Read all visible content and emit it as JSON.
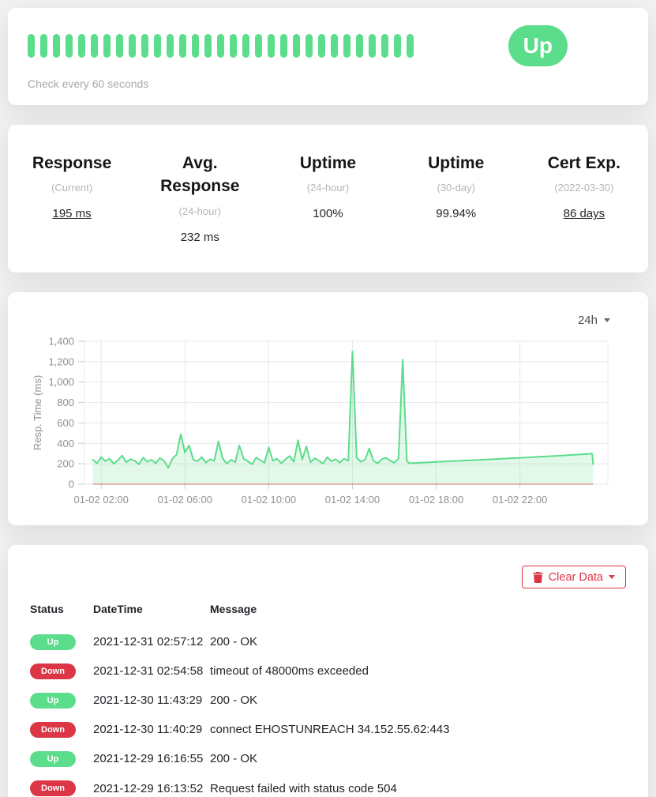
{
  "colors": {
    "up_green": "#5CDD8B",
    "down_red": "#DC3545",
    "area_fill": "rgba(92,221,139,0.18)",
    "grid_line": "#e8e8e8",
    "tick_mark": "#cccccc",
    "axis_text": "#909090",
    "down_baseline": "rgba(220,53,69,0.45)"
  },
  "monitor": {
    "status": "Up",
    "check_interval_text": "Check every 60 seconds",
    "heartbeats": [
      "up",
      "up",
      "up",
      "up",
      "up",
      "up",
      "up",
      "up",
      "up",
      "up",
      "up",
      "up",
      "up",
      "up",
      "up",
      "up",
      "up",
      "up",
      "up",
      "up",
      "up",
      "up",
      "up",
      "up",
      "up",
      "up",
      "up",
      "up",
      "up",
      "up",
      "up"
    ]
  },
  "stats": [
    {
      "title": "Response",
      "subtitle": "(Current)",
      "value": "195 ms",
      "underline": true
    },
    {
      "title": "Avg. Response",
      "subtitle": "(24-hour)",
      "value": "232 ms",
      "underline": false
    },
    {
      "title": "Uptime",
      "subtitle": "(24-hour)",
      "value": "100%",
      "underline": false
    },
    {
      "title": "Uptime",
      "subtitle": "(30-day)",
      "value": "99.94%",
      "underline": false
    },
    {
      "title": "Cert Exp.",
      "subtitle": "(2022-03-30)",
      "value": "86 days",
      "underline": true
    }
  ],
  "chart": {
    "range_label": "24h",
    "chart_data": {
      "type": "area",
      "title": "",
      "xlabel": "",
      "ylabel": "Resp. Time (ms)",
      "ylim": [
        0,
        1400
      ],
      "y_ticks": [
        0,
        200,
        400,
        600,
        800,
        1000,
        1200,
        1400
      ],
      "x_domain_hours": [
        1.2,
        26.2
      ],
      "x_ticks": [
        {
          "h": 2,
          "label": "01-02 02:00"
        },
        {
          "h": 6,
          "label": "01-02 06:00"
        },
        {
          "h": 10,
          "label": "01-02 10:00"
        },
        {
          "h": 14,
          "label": "01-02 14:00"
        },
        {
          "h": 18,
          "label": "01-02 18:00"
        },
        {
          "h": 22,
          "label": "01-02 22:00"
        }
      ],
      "grid": true,
      "legend": false,
      "series": [
        {
          "name": "Resp. Time (ms)",
          "points": [
            [
              1.6,
              240
            ],
            [
              1.8,
              205
            ],
            [
              2,
              265
            ],
            [
              2.2,
              225
            ],
            [
              2.4,
              250
            ],
            [
              2.6,
              200
            ],
            [
              2.8,
              235
            ],
            [
              3,
              280
            ],
            [
              3.2,
              215
            ],
            [
              3.4,
              245
            ],
            [
              3.6,
              230
            ],
            [
              3.8,
              195
            ],
            [
              4,
              260
            ],
            [
              4.2,
              220
            ],
            [
              4.4,
              240
            ],
            [
              4.6,
              205
            ],
            [
              4.8,
              255
            ],
            [
              5,
              230
            ],
            [
              5.2,
              160
            ],
            [
              5.4,
              250
            ],
            [
              5.6,
              290
            ],
            [
              5.8,
              490
            ],
            [
              6,
              310
            ],
            [
              6.2,
              380
            ],
            [
              6.4,
              240
            ],
            [
              6.6,
              225
            ],
            [
              6.8,
              265
            ],
            [
              7,
              210
            ],
            [
              7.2,
              245
            ],
            [
              7.4,
              230
            ],
            [
              7.6,
              420
            ],
            [
              7.8,
              255
            ],
            [
              8,
              200
            ],
            [
              8.2,
              240
            ],
            [
              8.4,
              215
            ],
            [
              8.6,
              380
            ],
            [
              8.8,
              250
            ],
            [
              9,
              225
            ],
            [
              9.2,
              195
            ],
            [
              9.4,
              260
            ],
            [
              9.6,
              235
            ],
            [
              9.8,
              210
            ],
            [
              10,
              360
            ],
            [
              10.2,
              230
            ],
            [
              10.4,
              250
            ],
            [
              10.6,
              205
            ],
            [
              10.8,
              245
            ],
            [
              11,
              275
            ],
            [
              11.2,
              220
            ],
            [
              11.4,
              430
            ],
            [
              11.6,
              240
            ],
            [
              11.8,
              370
            ],
            [
              12,
              215
            ],
            [
              12.2,
              255
            ],
            [
              12.4,
              230
            ],
            [
              12.6,
              200
            ],
            [
              12.8,
              265
            ],
            [
              13,
              225
            ],
            [
              13.2,
              245
            ],
            [
              13.4,
              210
            ],
            [
              13.6,
              250
            ],
            [
              13.8,
              230
            ],
            [
              14,
              1300
            ],
            [
              14.2,
              260
            ],
            [
              14.4,
              220
            ],
            [
              14.6,
              240
            ],
            [
              14.8,
              350
            ],
            [
              15,
              230
            ],
            [
              15.2,
              205
            ],
            [
              15.4,
              245
            ],
            [
              15.6,
              260
            ],
            [
              15.8,
              230
            ],
            [
              16,
              210
            ],
            [
              16.2,
              250
            ],
            [
              16.4,
              1220
            ],
            [
              16.6,
              230
            ],
            [
              16.7,
              205
            ],
            [
              18,
              218
            ],
            [
              20,
              238
            ],
            [
              22,
              258
            ],
            [
              24,
              280
            ],
            [
              25.3,
              297
            ],
            [
              25.45,
              300
            ],
            [
              25.5,
              195
            ]
          ]
        }
      ]
    }
  },
  "events": {
    "clear_button_label": "Clear Data",
    "columns": [
      "Status",
      "DateTime",
      "Message"
    ],
    "rows": [
      {
        "status": "Up",
        "datetime": "2021-12-31 02:57:12",
        "message": "200 - OK"
      },
      {
        "status": "Down",
        "datetime": "2021-12-31 02:54:58",
        "message": "timeout of 48000ms exceeded"
      },
      {
        "status": "Up",
        "datetime": "2021-12-30 11:43:29",
        "message": "200 - OK"
      },
      {
        "status": "Down",
        "datetime": "2021-12-30 11:40:29",
        "message": "connect EHOSTUNREACH 34.152.55.62:443"
      },
      {
        "status": "Up",
        "datetime": "2021-12-29 16:16:55",
        "message": "200 - OK"
      },
      {
        "status": "Down",
        "datetime": "2021-12-29 16:13:52",
        "message": "Request failed with status code 504"
      }
    ]
  }
}
